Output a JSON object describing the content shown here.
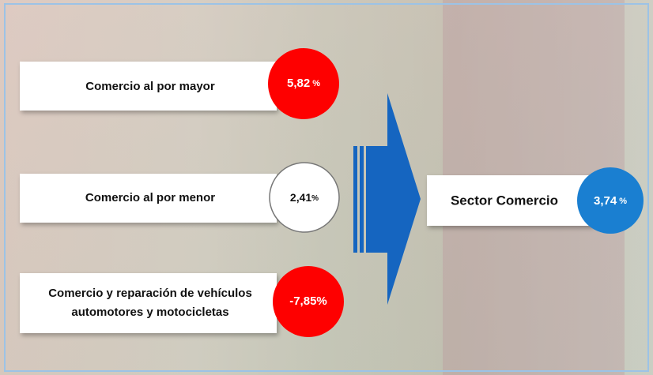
{
  "items": [
    {
      "label": "Comercio al por mayor",
      "value": "5,82",
      "unit": "%"
    },
    {
      "label": "Comercio al por menor",
      "value": "2,41",
      "unit": "%"
    },
    {
      "label_lines": [
        "Comercio y reparación de vehículos",
        "automotores y motocicletas"
      ],
      "value": "-7,85",
      "unit": "%"
    }
  ],
  "result": {
    "label": "Sector  Comercio",
    "value": "3,74",
    "unit": "%"
  }
}
